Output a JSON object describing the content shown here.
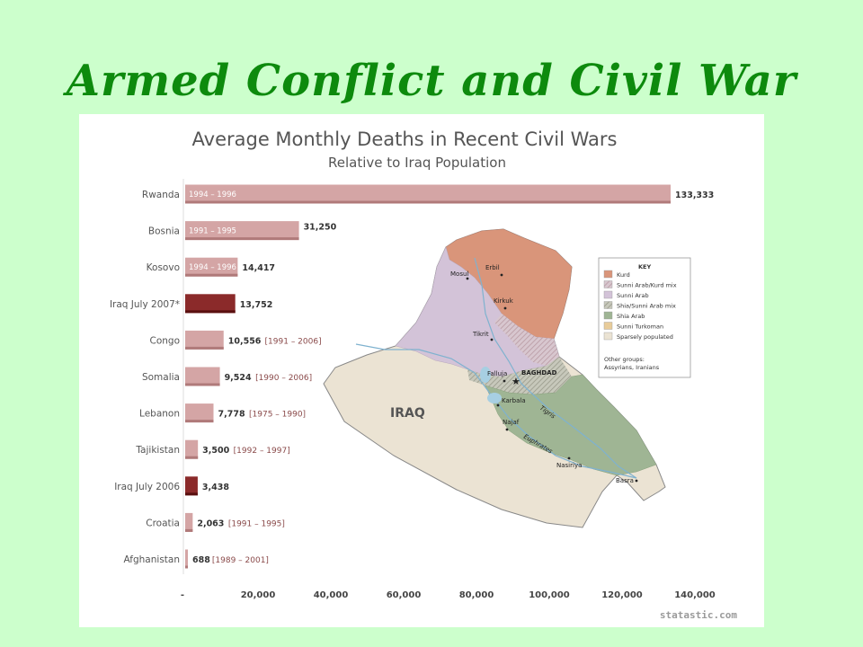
{
  "slide": {
    "title": "Armed Conflict and Civil War"
  },
  "chart_data": {
    "type": "bar",
    "orientation": "horizontal",
    "title": "Average Monthly Deaths in Recent Civil Wars",
    "subtitle": "Relative to Iraq Population",
    "xlim": [
      0,
      140000
    ],
    "xticks": [
      "-",
      "20,000",
      "40,000",
      "60,000",
      "80,000",
      "100,000",
      "120,000",
      "140,000"
    ],
    "grid": false,
    "categories": [
      "Rwanda",
      "Bosnia",
      "Kosovo",
      "Iraq July 2007*",
      "Congo",
      "Somalia",
      "Lebanon",
      "Tajikistan",
      "Iraq July 2006",
      "Croatia",
      "Afghanistan"
    ],
    "values": [
      133333,
      31250,
      14417,
      13752,
      10556,
      9524,
      7778,
      3500,
      3438,
      2063,
      688
    ],
    "value_labels": [
      "133,333",
      "31,250",
      "14,417",
      "13,752",
      "10,556",
      "9,524",
      "7,778",
      "3,500",
      "3,438",
      "2,063",
      "688"
    ],
    "ranges": [
      "1994 – 1996",
      "1991 – 1995",
      "1994 – 1996",
      "",
      "[1991 – 2006]",
      "[1990 – 2006]",
      "[1975 – 1990]",
      "[1992 – 1997]",
      "",
      "[1991 – 1995]",
      "[1989 – 2001]"
    ],
    "range_inside_bar": [
      true,
      true,
      true,
      false,
      false,
      false,
      false,
      false,
      false,
      false,
      false
    ],
    "highlight": [
      false,
      false,
      false,
      true,
      false,
      false,
      false,
      false,
      true,
      false,
      false
    ],
    "colors": {
      "bar": "#d4a5a5",
      "bar_dark": "#b07a7a",
      "highlight": "#8b2a2a",
      "highlight_dark": "#5a1010"
    }
  },
  "map": {
    "country_label": "IRAQ",
    "cities": [
      "Mosul",
      "Erbil",
      "Kirkuk",
      "Tikrit",
      "Falluja",
      "BAGHDAD",
      "Karbala",
      "Najaf",
      "Nasiriya",
      "Basra"
    ],
    "rivers": [
      "Tigris",
      "Euphrates"
    ],
    "key_title": "KEY",
    "key_items": [
      {
        "label": "Kurd",
        "color": "#d9957a"
      },
      {
        "label": "Sunni Arab/Kurd mix",
        "color": "#d8b4b8"
      },
      {
        "label": "Sunni Arab",
        "color": "#d3c3d8"
      },
      {
        "label": "Shia/Sunni Arab mix",
        "color": "#a8aa9c"
      },
      {
        "label": "Shia Arab",
        "color": "#9fb594"
      },
      {
        "label": "Sunni Turkoman",
        "color": "#e8cc9a"
      },
      {
        "label": "Sparsely populated",
        "color": "#ebe3d3"
      }
    ],
    "key_note_1": "Other groups:",
    "key_note_2": "Assyrians, Iranians"
  },
  "footer": {
    "brand": "statastic.com"
  }
}
